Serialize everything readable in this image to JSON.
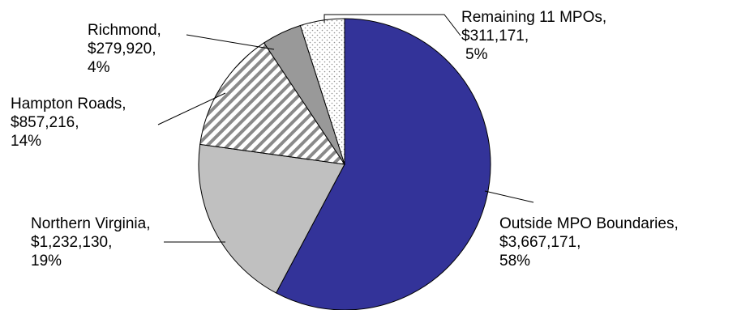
{
  "chart_data": {
    "type": "pie",
    "title": "",
    "start_angle_deg": 0,
    "direction": "clockwise",
    "slices": [
      {
        "label": "Outside MPO Boundaries,",
        "amount": "$3,667,171,",
        "percent_label": "58%",
        "value": 3667171,
        "color": "#333399",
        "fill": "solid"
      },
      {
        "label": "Northern Virginia,",
        "amount": "$1,232,130,",
        "percent_label": "19%",
        "value": 1232130,
        "color": "#c0c0c0",
        "fill": "solid"
      },
      {
        "label": "Hampton Roads,",
        "amount": "$857,216,",
        "percent_label": "14%",
        "value": 857216,
        "color": "#808080",
        "fill": "diagonal-stripes"
      },
      {
        "label": "Richmond,",
        "amount": "$279,920,",
        "percent_label": "4%",
        "value": 279920,
        "color": "#999999",
        "fill": "solid"
      },
      {
        "label": "Remaining 11 MPOs,",
        "amount": "$311,171,",
        "percent_label": "5%",
        "value": 311171,
        "color": "#ffffff",
        "fill": "dots"
      }
    ]
  }
}
